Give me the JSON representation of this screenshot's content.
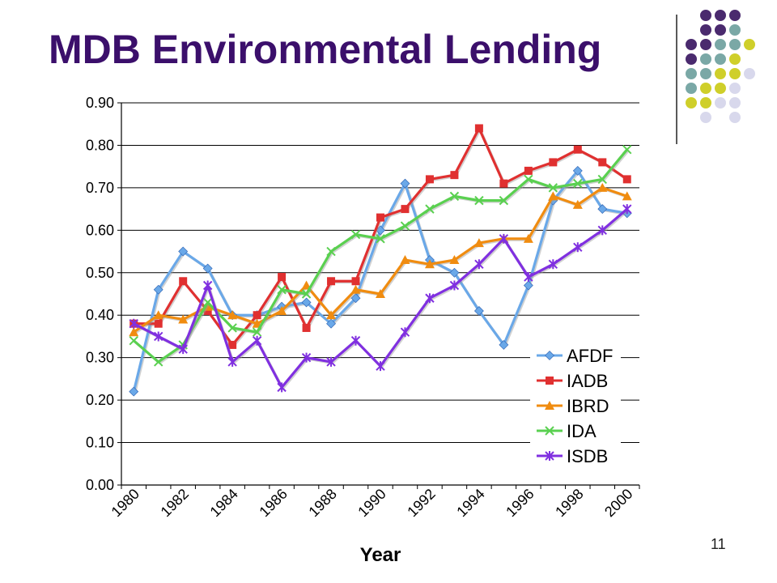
{
  "slide": {
    "title": "MDB Environmental Lending",
    "page_number": "11"
  },
  "decor": {
    "dot_colors": {
      "purple": "#4a2a6e",
      "teal": "#7aa8a6",
      "olive": "#cfcf2a",
      "lavender": "#d8d8ec"
    },
    "dot_grid": [
      [
        "",
        "purple",
        "purple",
        "purple",
        ""
      ],
      [
        "",
        "purple",
        "purple",
        "teal",
        ""
      ],
      [
        "purple",
        "purple",
        "teal",
        "teal",
        "olive"
      ],
      [
        "purple",
        "teal",
        "teal",
        "olive",
        ""
      ],
      [
        "teal",
        "teal",
        "olive",
        "olive",
        "lavender"
      ],
      [
        "teal",
        "olive",
        "olive",
        "lavender",
        ""
      ],
      [
        "olive",
        "olive",
        "lavender",
        "lavender",
        ""
      ],
      [
        "",
        "lavender",
        "",
        "lavender",
        ""
      ]
    ]
  },
  "chart_data": {
    "type": "line",
    "title": "",
    "xlabel": "Year",
    "ylabel": "",
    "ylim": [
      0,
      0.9
    ],
    "yticks": [
      "0.00",
      "0.10",
      "0.20",
      "0.30",
      "0.40",
      "0.50",
      "0.60",
      "0.70",
      "0.80",
      "0.90"
    ],
    "x": [
      1980,
      1981,
      1982,
      1983,
      1984,
      1985,
      1986,
      1987,
      1988,
      1989,
      1990,
      1991,
      1992,
      1993,
      1994,
      1995,
      1996,
      1997,
      1998,
      1999,
      2000
    ],
    "xtick_labels": [
      "1980",
      "1982",
      "1984",
      "1986",
      "1988",
      "1990",
      "1992",
      "1994",
      "1996",
      "1998",
      "2000"
    ],
    "grid": true,
    "legend_position": "bottom-right",
    "series": [
      {
        "name": "AFDF",
        "color": "#6aa8e8",
        "marker": "diamond",
        "values": [
          0.22,
          0.46,
          0.55,
          0.51,
          0.4,
          0.4,
          0.42,
          0.43,
          0.38,
          0.44,
          0.6,
          0.71,
          0.53,
          0.5,
          0.41,
          0.33,
          0.47,
          0.67,
          0.74,
          0.65,
          0.64
        ]
      },
      {
        "name": "IADB",
        "color": "#e03030",
        "marker": "square",
        "values": [
          0.38,
          0.38,
          0.48,
          0.41,
          0.33,
          0.4,
          0.49,
          0.37,
          0.48,
          0.48,
          0.63,
          0.65,
          0.72,
          0.73,
          0.84,
          0.71,
          0.74,
          0.76,
          0.79,
          0.76,
          0.72
        ]
      },
      {
        "name": "IBRD",
        "color": "#f08c10",
        "marker": "triangle",
        "values": [
          0.36,
          0.4,
          0.39,
          0.42,
          0.4,
          0.38,
          0.41,
          0.47,
          0.4,
          0.46,
          0.45,
          0.53,
          0.52,
          0.53,
          0.57,
          0.58,
          0.58,
          0.68,
          0.66,
          0.7,
          0.68
        ]
      },
      {
        "name": "IDA",
        "color": "#5ad050",
        "marker": "x",
        "values": [
          0.34,
          0.29,
          0.33,
          0.43,
          0.37,
          0.36,
          0.46,
          0.45,
          0.55,
          0.59,
          0.58,
          0.61,
          0.65,
          0.68,
          0.67,
          0.67,
          0.72,
          0.7,
          0.71,
          0.72,
          0.79
        ]
      },
      {
        "name": "ISDB",
        "color": "#8030e0",
        "marker": "star",
        "values": [
          0.38,
          0.35,
          0.32,
          0.47,
          0.29,
          0.34,
          0.23,
          0.3,
          0.29,
          0.34,
          0.28,
          0.36,
          0.44,
          0.47,
          0.52,
          0.58,
          0.49,
          0.52,
          0.56,
          0.6,
          0.65
        ]
      }
    ]
  }
}
